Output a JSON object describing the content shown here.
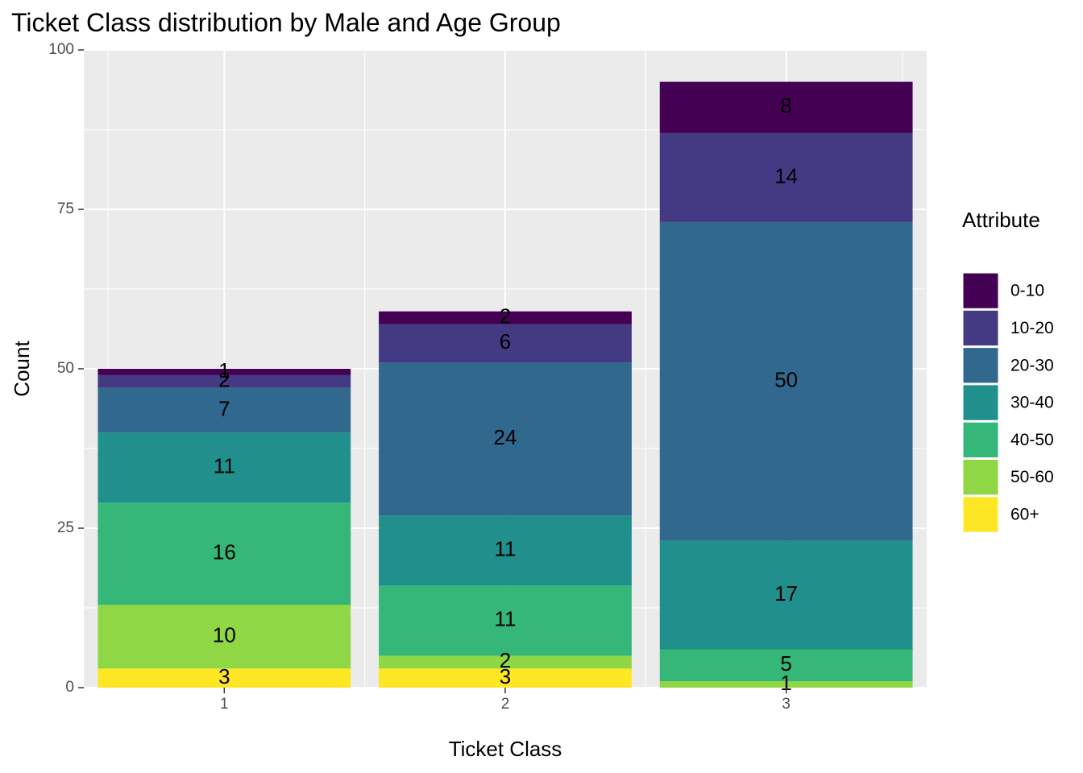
{
  "chart_data": {
    "type": "bar",
    "stacked": true,
    "title": "Ticket Class distribution by Male and Age Group",
    "xlabel": "Ticket Class",
    "ylabel": "Count",
    "categories": [
      "1",
      "2",
      "3"
    ],
    "ylim": [
      0,
      100
    ],
    "yticks": [
      0,
      25,
      50,
      75,
      100
    ],
    "grid": true,
    "legend": {
      "title": "Attribute",
      "position": "right"
    },
    "series": [
      {
        "name": "0-10",
        "color": "#440154",
        "values": [
          1,
          2,
          8
        ]
      },
      {
        "name": "10-20",
        "color": "#443A83",
        "values": [
          2,
          6,
          14
        ]
      },
      {
        "name": "20-30",
        "color": "#31688E",
        "values": [
          7,
          24,
          50
        ]
      },
      {
        "name": "30-40",
        "color": "#21908C",
        "values": [
          11,
          11,
          17
        ]
      },
      {
        "name": "40-50",
        "color": "#35B779",
        "values": [
          16,
          11,
          5
        ]
      },
      {
        "name": "50-60",
        "color": "#8FD744",
        "values": [
          10,
          2,
          1
        ]
      },
      {
        "name": "60+",
        "color": "#FDE725",
        "values": [
          3,
          3,
          0
        ]
      }
    ]
  }
}
